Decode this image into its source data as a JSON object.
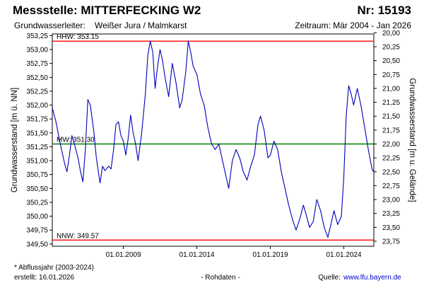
{
  "header": {
    "title": "Messstelle: MITTERFECKING  W2",
    "number": "Nr: 15193",
    "aquifer_label": "Grundwasserleiter:",
    "aquifer_value": "Weißer Jura / Malmkarst",
    "period": "Zeitraum: Mär 2004 - Jan 2026"
  },
  "footer": {
    "note": "* Abflussjahr (2003-2024)",
    "created": "erstellt:  16.01.2026",
    "data_type": "- Rohdaten -",
    "source_label": "Quelle:",
    "source_link": "www.lfu.bayern.de"
  },
  "colors": {
    "series": "#0000bb",
    "hhw": "#ff0000",
    "nnw": "#ff0000",
    "mw": "#008000",
    "frame": "#000000"
  },
  "chart_data": {
    "type": "line",
    "ylabel": "Grundwasserstand [m ü. NN]",
    "y2label": "Grundwasserstand [m u. Gelände]",
    "ylim": [
      349.46,
      353.28
    ],
    "xlim": [
      "2004-03-01",
      "2026-01-16"
    ],
    "yticks": [
      "353,25",
      "353,00",
      "352,75",
      "352,50",
      "352,25",
      "352,00",
      "351,75",
      "351,50",
      "351,25",
      "351,00",
      "350,75",
      "350,50",
      "350,25",
      "350,00",
      "349,75",
      "349,50"
    ],
    "ytick_values": [
      353.25,
      353.0,
      352.75,
      352.5,
      352.25,
      352.0,
      351.75,
      351.5,
      351.25,
      351.0,
      350.75,
      350.5,
      350.25,
      350.0,
      349.75,
      349.5
    ],
    "y2ticks": [
      "20,00",
      "20,25",
      "20,50",
      "20,75",
      "21,00",
      "21,25",
      "21,50",
      "21,75",
      "22,00",
      "22,25",
      "22,50",
      "22,75",
      "23,00",
      "23,25",
      "23,50",
      "23,75"
    ],
    "y2tick_values": [
      353.3,
      353.05,
      352.8,
      352.55,
      352.3,
      352.05,
      351.8,
      351.55,
      351.3,
      351.05,
      350.8,
      350.55,
      350.3,
      350.05,
      349.8,
      349.55
    ],
    "xticks": [
      "01.01.2009",
      "01.01.2014",
      "01.01.2019",
      "01.01.2024"
    ],
    "xtick_values": [
      "2009-01-01",
      "2014-01-01",
      "2019-01-01",
      "2024-01-01"
    ],
    "reference_lines": [
      {
        "label": "HHW: 353.15",
        "value": 353.15,
        "color": "#ff0000"
      },
      {
        "label": "MW: 351.30",
        "value": 351.3,
        "color": "#008000"
      },
      {
        "label": "NNW: 349.57",
        "value": 349.57,
        "color": "#ff0000"
      }
    ],
    "grid": false,
    "series": [
      {
        "values": [
          [
            "2004-03-01",
            351.95
          ],
          [
            "2004-06-01",
            351.7
          ],
          [
            "2004-09-01",
            351.35
          ],
          [
            "2005-01-01",
            350.95
          ],
          [
            "2005-03-01",
            350.8
          ],
          [
            "2005-05-01",
            351.1
          ],
          [
            "2005-07-01",
            351.45
          ],
          [
            "2005-09-01",
            351.3
          ],
          [
            "2005-12-01",
            351.05
          ],
          [
            "2006-02-01",
            350.8
          ],
          [
            "2006-04-01",
            350.62
          ],
          [
            "2006-06-01",
            351.2
          ],
          [
            "2006-08-01",
            352.1
          ],
          [
            "2006-10-01",
            352.0
          ],
          [
            "2007-01-01",
            351.5
          ],
          [
            "2007-03-01",
            351.05
          ],
          [
            "2007-06-01",
            350.6
          ],
          [
            "2007-08-01",
            350.9
          ],
          [
            "2007-10-01",
            350.82
          ],
          [
            "2008-01-01",
            350.9
          ],
          [
            "2008-03-01",
            350.85
          ],
          [
            "2008-05-01",
            351.2
          ],
          [
            "2008-07-01",
            351.65
          ],
          [
            "2008-09-01",
            351.7
          ],
          [
            "2008-11-01",
            351.45
          ],
          [
            "2009-01-01",
            351.35
          ],
          [
            "2009-03-01",
            351.1
          ],
          [
            "2009-05-01",
            351.4
          ],
          [
            "2009-07-01",
            351.82
          ],
          [
            "2009-09-01",
            351.5
          ],
          [
            "2009-11-01",
            351.3
          ],
          [
            "2010-01-01",
            351.0
          ],
          [
            "2010-04-01",
            351.5
          ],
          [
            "2010-07-01",
            352.2
          ],
          [
            "2010-09-01",
            352.9
          ],
          [
            "2010-11-01",
            353.15
          ],
          [
            "2011-01-01",
            352.95
          ],
          [
            "2011-03-01",
            352.3
          ],
          [
            "2011-05-01",
            352.7
          ],
          [
            "2011-07-01",
            353.0
          ],
          [
            "2011-09-01",
            352.8
          ],
          [
            "2011-11-01",
            352.5
          ],
          [
            "2012-02-01",
            352.15
          ],
          [
            "2012-05-01",
            352.75
          ],
          [
            "2012-08-01",
            352.4
          ],
          [
            "2012-11-01",
            351.95
          ],
          [
            "2013-01-01",
            352.1
          ],
          [
            "2013-04-01",
            352.6
          ],
          [
            "2013-06-01",
            353.15
          ],
          [
            "2013-08-01",
            352.95
          ],
          [
            "2013-10-01",
            352.7
          ],
          [
            "2014-01-01",
            352.55
          ],
          [
            "2014-04-01",
            352.2
          ],
          [
            "2014-07-01",
            352.0
          ],
          [
            "2014-10-01",
            351.6
          ],
          [
            "2015-01-01",
            351.3
          ],
          [
            "2015-04-01",
            351.2
          ],
          [
            "2015-07-01",
            351.3
          ],
          [
            "2015-10-01",
            351.0
          ],
          [
            "2016-01-01",
            350.7
          ],
          [
            "2016-03-01",
            350.5
          ],
          [
            "2016-06-01",
            351.0
          ],
          [
            "2016-09-01",
            351.2
          ],
          [
            "2016-12-01",
            351.05
          ],
          [
            "2017-03-01",
            350.8
          ],
          [
            "2017-06-01",
            350.65
          ],
          [
            "2017-09-01",
            350.9
          ],
          [
            "2017-12-01",
            351.1
          ],
          [
            "2018-03-01",
            351.65
          ],
          [
            "2018-05-01",
            351.8
          ],
          [
            "2018-08-01",
            351.55
          ],
          [
            "2018-11-01",
            351.05
          ],
          [
            "2019-01-01",
            351.1
          ],
          [
            "2019-04-01",
            351.35
          ],
          [
            "2019-07-01",
            351.2
          ],
          [
            "2019-10-01",
            350.8
          ],
          [
            "2020-01-01",
            350.5
          ],
          [
            "2020-04-01",
            350.2
          ],
          [
            "2020-07-01",
            349.95
          ],
          [
            "2020-10-01",
            349.75
          ],
          [
            "2021-01-01",
            349.95
          ],
          [
            "2021-04-01",
            350.2
          ],
          [
            "2021-06-01",
            350.05
          ],
          [
            "2021-09-01",
            349.8
          ],
          [
            "2021-12-01",
            349.9
          ],
          [
            "2022-03-01",
            350.3
          ],
          [
            "2022-06-01",
            350.1
          ],
          [
            "2022-09-01",
            349.8
          ],
          [
            "2022-12-01",
            349.62
          ],
          [
            "2023-03-01",
            349.9
          ],
          [
            "2023-05-01",
            350.1
          ],
          [
            "2023-08-01",
            349.85
          ],
          [
            "2023-11-01",
            350.0
          ],
          [
            "2024-01-01",
            350.7
          ],
          [
            "2024-03-01",
            351.8
          ],
          [
            "2024-05-01",
            352.35
          ],
          [
            "2024-07-01",
            352.2
          ],
          [
            "2024-09-01",
            352.0
          ],
          [
            "2024-12-01",
            352.3
          ],
          [
            "2025-03-01",
            352.0
          ],
          [
            "2025-06-01",
            351.6
          ],
          [
            "2025-09-01",
            351.2
          ],
          [
            "2025-12-01",
            350.85
          ],
          [
            "2026-01-10",
            350.8
          ]
        ]
      }
    ]
  }
}
